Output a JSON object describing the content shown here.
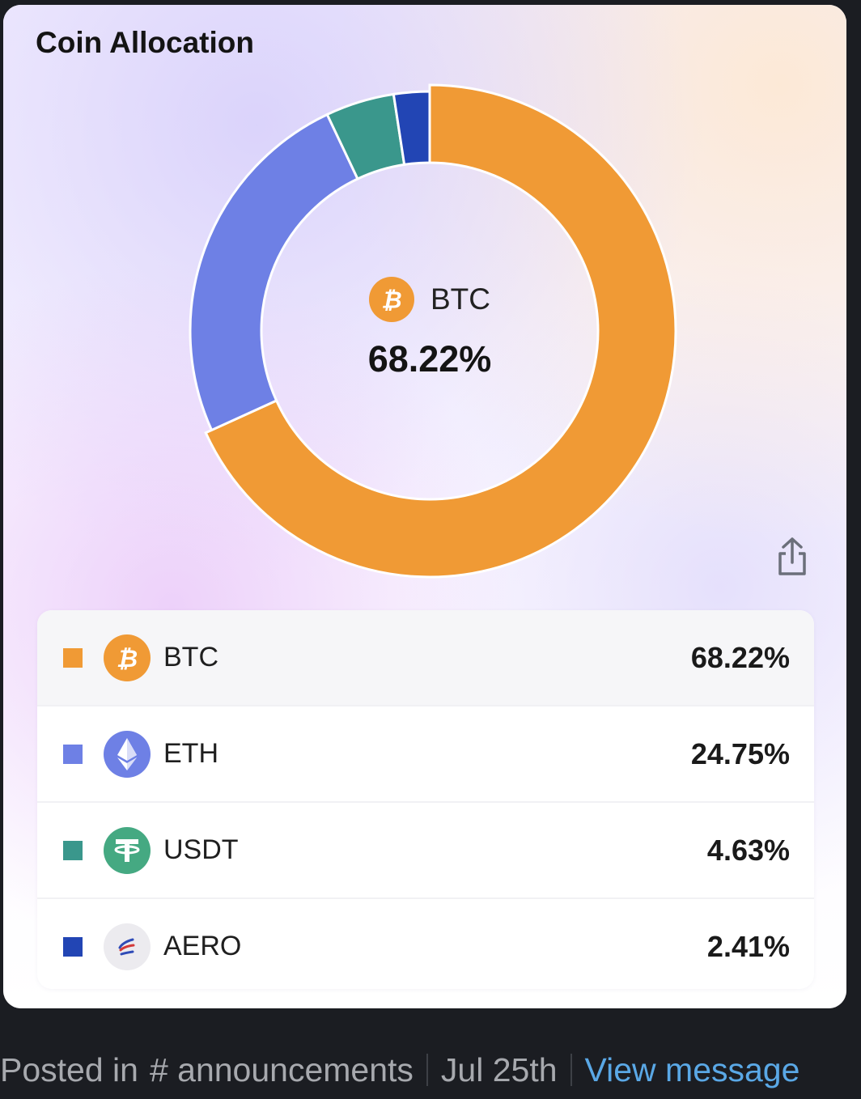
{
  "card": {
    "title": "Coin Allocation"
  },
  "center": {
    "symbol": "BTC",
    "percent": "68.22%"
  },
  "colors": {
    "BTC": "#f09a35",
    "ETH": "#6e80e5",
    "USDT": "#3a978c",
    "AERO": "#2245b4"
  },
  "chart_data": {
    "type": "pie",
    "style": "donut",
    "categories": [
      "BTC",
      "ETH",
      "USDT",
      "AERO"
    ],
    "values": [
      68.22,
      24.75,
      4.63,
      2.41
    ],
    "title": "Coin Allocation",
    "colors": [
      "#f09a35",
      "#6e80e5",
      "#3a978c",
      "#2245b4"
    ],
    "highlighted": "BTC"
  },
  "legend": [
    {
      "symbol": "BTC",
      "percent": "68.22%",
      "color": "#f09a35",
      "icon": "bitcoin-icon"
    },
    {
      "symbol": "ETH",
      "percent": "24.75%",
      "color": "#6e80e5",
      "icon": "ethereum-icon"
    },
    {
      "symbol": "USDT",
      "percent": "4.63%",
      "color": "#3a978c",
      "icon": "tether-icon"
    },
    {
      "symbol": "AERO",
      "percent": "2.41%",
      "color": "#2245b4",
      "icon": "aerodrome-icon"
    }
  ],
  "share": {
    "icon": "share-icon"
  },
  "footer": {
    "posted_in": "Posted in",
    "channel": "# announcements",
    "date": "Jul 25th",
    "link": "View message"
  }
}
